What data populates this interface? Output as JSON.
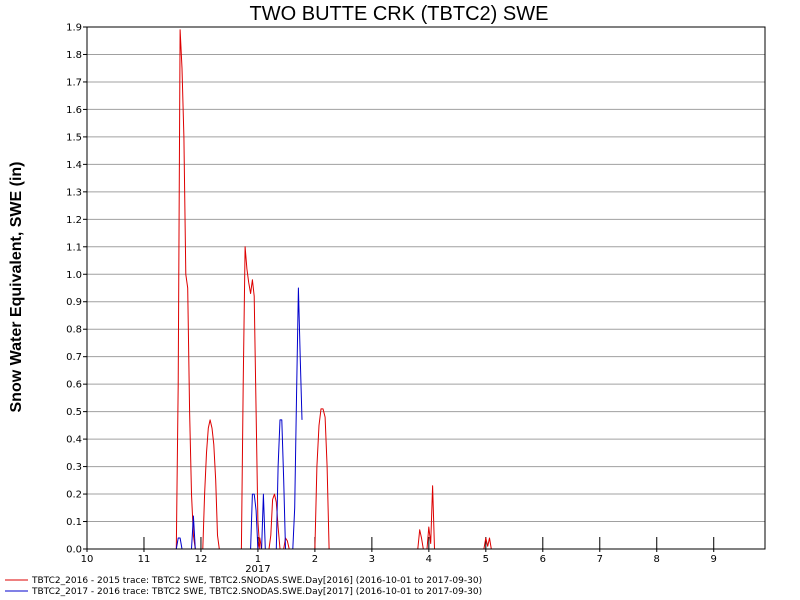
{
  "chart_data": {
    "type": "line",
    "title": "TWO BUTTE CRK (TBTC2) SWE",
    "xlabel": "",
    "ylabel": "Snow Water Equivalent, SWE (in)",
    "x_tick_labels": [
      "10",
      "11",
      "12",
      "1",
      "2",
      "3",
      "4",
      "5",
      "6",
      "7",
      "8",
      "9"
    ],
    "x_year_label": "2017",
    "xlim_month_index": [
      0,
      11.9
    ],
    "ylim": [
      0,
      1.9
    ],
    "y_ticks": [
      0.0,
      0.1,
      0.2,
      0.3,
      0.4,
      0.5,
      0.6,
      0.7,
      0.8,
      0.9,
      1.0,
      1.1,
      1.2,
      1.3,
      1.4,
      1.5,
      1.6,
      1.7,
      1.8,
      1.9
    ],
    "y_tick_labels": [
      "0.0",
      "0.1",
      "0.2",
      "0.3",
      "0.4",
      "0.5",
      "0.6",
      "0.7",
      "0.8",
      "0.9",
      "1.0",
      "1.1",
      "1.2",
      "1.3",
      "1.4",
      "1.5",
      "1.6",
      "1.7",
      "1.8",
      "1.9"
    ],
    "grid": true,
    "legend_position": "bottom",
    "series": [
      {
        "name": "TBTC2_2016 - 2015 trace: TBTC2 SWE, TBTC2.SNODAS.SWE.Day[2016] (2016-10-01 to 2017-09-30)",
        "color": "#dd0000",
        "points": [
          [
            "2016-11-18",
            0.0
          ],
          [
            "2016-11-19",
            0.6
          ],
          [
            "2016-11-20",
            1.89
          ],
          [
            "2016-11-21",
            1.75
          ],
          [
            "2016-11-22",
            1.5
          ],
          [
            "2016-11-23",
            1.0
          ],
          [
            "2016-11-24",
            0.95
          ],
          [
            "2016-11-25",
            0.5
          ],
          [
            "2016-11-26",
            0.2
          ],
          [
            "2016-11-27",
            0.05
          ],
          [
            "2016-11-28",
            0.0
          ],
          [
            "2016-12-02",
            0.0
          ],
          [
            "2016-12-03",
            0.2
          ],
          [
            "2016-12-04",
            0.35
          ],
          [
            "2016-12-05",
            0.44
          ],
          [
            "2016-12-06",
            0.47
          ],
          [
            "2016-12-07",
            0.44
          ],
          [
            "2016-12-08",
            0.38
          ],
          [
            "2016-12-09",
            0.25
          ],
          [
            "2016-12-10",
            0.05
          ],
          [
            "2016-12-11",
            0.0
          ],
          [
            "2016-12-23",
            0.0
          ],
          [
            "2016-12-24",
            0.6
          ],
          [
            "2016-12-25",
            1.1
          ],
          [
            "2016-12-26",
            1.02
          ],
          [
            "2016-12-27",
            0.97
          ],
          [
            "2016-12-28",
            0.93
          ],
          [
            "2016-12-29",
            0.98
          ],
          [
            "2016-12-30",
            0.92
          ],
          [
            "2016-12-31",
            0.5
          ],
          [
            "2017-01-01",
            0.1
          ],
          [
            "2017-01-02",
            0.0
          ],
          [
            "2017-01-01",
            0.0
          ],
          [
            "2017-01-02",
            0.04
          ],
          [
            "2017-01-03",
            0.0
          ],
          [
            "2017-01-07",
            0.0
          ],
          [
            "2017-01-08",
            0.05
          ],
          [
            "2017-01-09",
            0.18
          ],
          [
            "2017-01-10",
            0.2
          ],
          [
            "2017-01-11",
            0.17
          ],
          [
            "2017-01-12",
            0.08
          ],
          [
            "2017-01-13",
            0.0
          ],
          [
            "2017-01-15",
            0.0
          ],
          [
            "2017-01-16",
            0.04
          ],
          [
            "2017-01-17",
            0.03
          ],
          [
            "2017-01-18",
            0.0
          ],
          [
            "2017-02-01",
            0.0
          ],
          [
            "2017-02-02",
            0.3
          ],
          [
            "2017-02-03",
            0.45
          ],
          [
            "2017-02-04",
            0.51
          ],
          [
            "2017-02-05",
            0.51
          ],
          [
            "2017-02-06",
            0.48
          ],
          [
            "2017-02-07",
            0.3
          ],
          [
            "2017-02-08",
            0.0
          ],
          [
            "2017-03-26",
            0.0
          ],
          [
            "2017-03-27",
            0.07
          ],
          [
            "2017-03-28",
            0.04
          ],
          [
            "2017-03-29",
            0.0
          ],
          [
            "2017-03-31",
            0.0
          ],
          [
            "2017-04-01",
            0.08
          ],
          [
            "2017-04-02",
            0.02
          ],
          [
            "2017-04-03",
            0.23
          ],
          [
            "2017-04-04",
            0.0
          ],
          [
            "2017-04-30",
            0.0
          ],
          [
            "2017-05-01",
            0.04
          ],
          [
            "2017-05-02",
            0.01
          ],
          [
            "2017-05-03",
            0.04
          ],
          [
            "2017-05-04",
            0.0
          ]
        ]
      },
      {
        "name": "TBTC2_2017 - 2016 trace: TBTC2 SWE, TBTC2.SNODAS.SWE.Day[2017] (2016-10-01 to 2017-09-30)",
        "color": "#0000cc",
        "points": [
          [
            "2016-11-18",
            0.0
          ],
          [
            "2016-11-19",
            0.04
          ],
          [
            "2016-11-20",
            0.04
          ],
          [
            "2016-11-21",
            0.0
          ],
          [
            "2016-11-26",
            0.0
          ],
          [
            "2016-11-27",
            0.12
          ],
          [
            "2016-11-28",
            0.0
          ],
          [
            "2016-12-28",
            0.0
          ],
          [
            "2016-12-29",
            0.2
          ],
          [
            "2016-12-30",
            0.2
          ],
          [
            "2016-12-31",
            0.14
          ],
          [
            "2017-01-01",
            0.0
          ],
          [
            "2017-01-03",
            0.0
          ],
          [
            "2017-01-04",
            0.2
          ],
          [
            "2017-01-05",
            0.0
          ],
          [
            "2017-01-11",
            0.0
          ],
          [
            "2017-01-12",
            0.3
          ],
          [
            "2017-01-13",
            0.47
          ],
          [
            "2017-01-14",
            0.47
          ],
          [
            "2017-01-15",
            0.25
          ],
          [
            "2017-01-16",
            0.0
          ],
          [
            "2017-01-20",
            0.0
          ],
          [
            "2017-01-21",
            0.15
          ],
          [
            "2017-01-22",
            0.55
          ],
          [
            "2017-01-23",
            0.95
          ],
          [
            "2017-01-24",
            0.7
          ],
          [
            "2017-01-25",
            0.47
          ]
        ]
      }
    ]
  }
}
